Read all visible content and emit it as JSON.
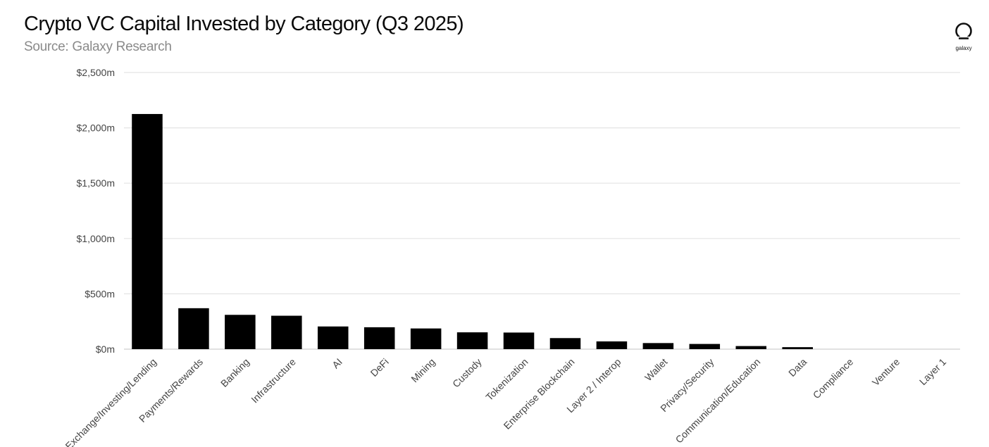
{
  "brand": {
    "name": "galaxy",
    "icon": "galaxy-logo-icon"
  },
  "chart_data": {
    "type": "bar",
    "title": "Crypto VC Capital Invested by Category (Q3 2025)",
    "subtitle": "Source: Galaxy Research",
    "xlabel": "",
    "ylabel": "",
    "ylim": [
      0,
      2500
    ],
    "yticks": [
      0,
      500,
      1000,
      1500,
      2000,
      2500
    ],
    "ytick_labels": [
      "$0m",
      "$500m",
      "$1,000m",
      "$1,500m",
      "$2,000m",
      "$2,500m"
    ],
    "grid": true,
    "legend": "none",
    "bar_color": "#000000",
    "categories": [
      "Exchange/Investing/Lending",
      "Payments/Rewards",
      "Banking",
      "Infrastructure",
      "AI",
      "DeFi",
      "Mining",
      "Custody",
      "Tokenization",
      "Enterprise Blockchain",
      "Layer 2 / Interop",
      "Wallet",
      "Privacy/Security",
      "Communication/Education",
      "Data",
      "Compliance",
      "Venture",
      "Layer 1"
    ],
    "values": [
      2125,
      370,
      310,
      302,
      205,
      198,
      187,
      152,
      150,
      100,
      70,
      55,
      47,
      28,
      18,
      0,
      0,
      0
    ]
  }
}
